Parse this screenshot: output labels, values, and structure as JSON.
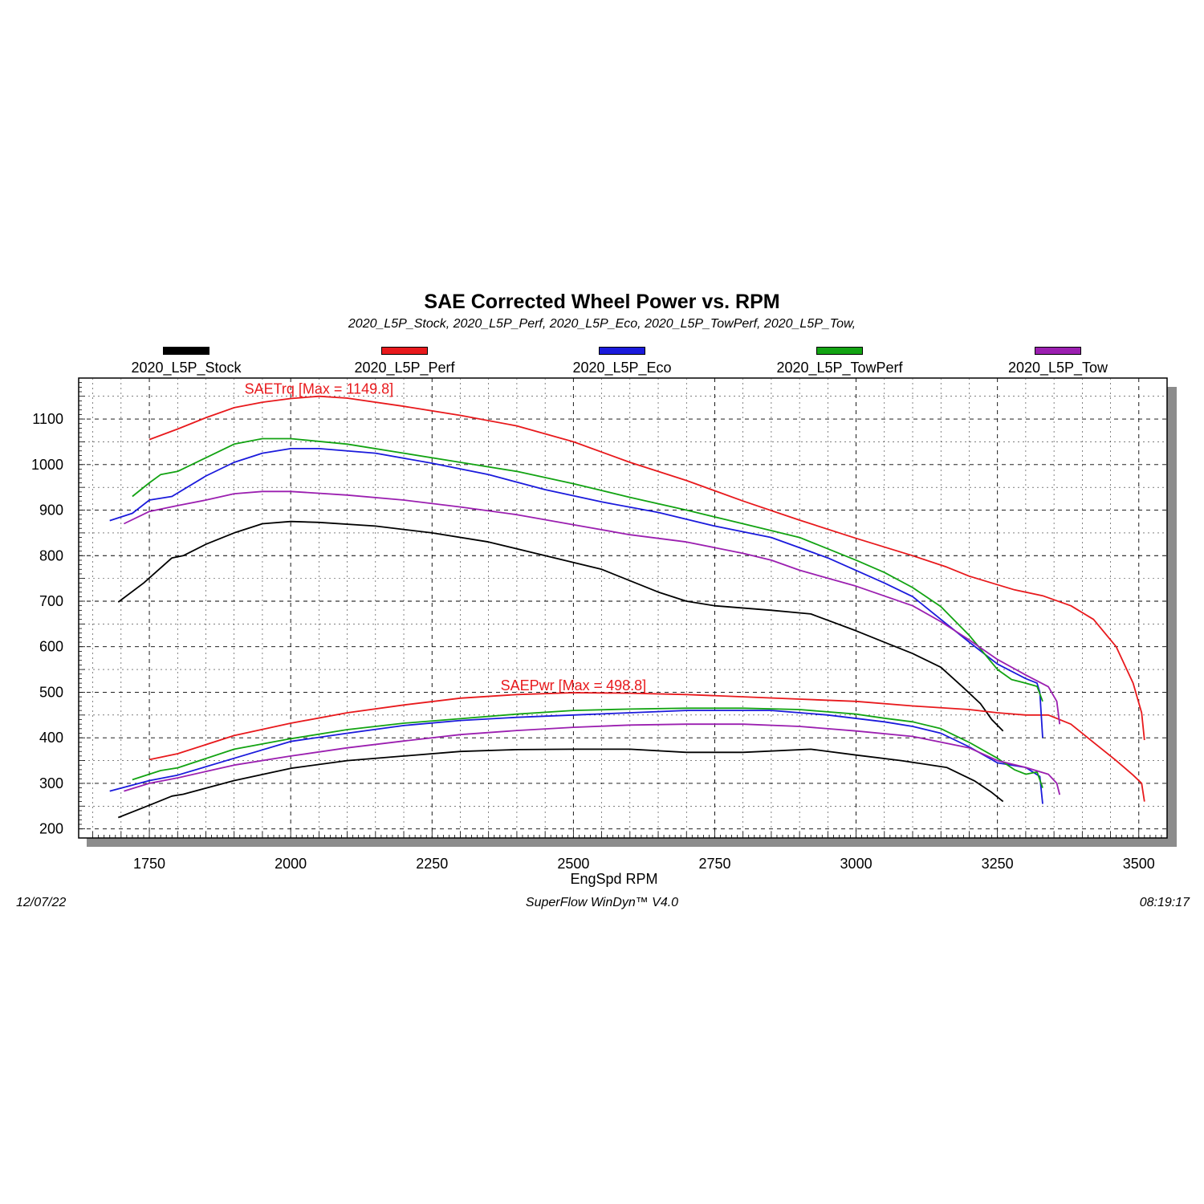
{
  "chart_data": {
    "type": "line",
    "title": "SAE Corrected Wheel Power vs. RPM",
    "subtitle": "2020_L5P_Stock, 2020_L5P_Perf, 2020_L5P_Eco, 2020_L5P_TowPerf, 2020_L5P_Tow,",
    "xlabel": "EngSpd RPM",
    "ylabel": "",
    "xlim": [
      1625,
      3550
    ],
    "ylim": [
      180,
      1190
    ],
    "xticks": [
      1750,
      2000,
      2250,
      2500,
      2750,
      3000,
      3250,
      3500
    ],
    "yticks": [
      200,
      300,
      400,
      500,
      600,
      700,
      800,
      900,
      1000,
      1100
    ],
    "grid": true,
    "legend_position": "top",
    "annotations": [
      {
        "name": "torque-max-annotation",
        "text": "SAETrq [Max = 1149.8]",
        "x": 2050,
        "y": 1150,
        "color": "#e8191c"
      },
      {
        "name": "power-max-annotation",
        "text": "SAEPwr [Max = 498.8]",
        "x": 2500,
        "y": 499,
        "color": "#e8191c"
      }
    ],
    "series": [
      {
        "name": "2020_L5P_Stock",
        "color": "#000000",
        "torque": [
          [
            1695,
            698
          ],
          [
            1740,
            740
          ],
          [
            1790,
            795
          ],
          [
            1810,
            800
          ],
          [
            1850,
            825
          ],
          [
            1900,
            850
          ],
          [
            1950,
            870
          ],
          [
            2000,
            875
          ],
          [
            2050,
            873
          ],
          [
            2150,
            865
          ],
          [
            2250,
            850
          ],
          [
            2350,
            830
          ],
          [
            2450,
            800
          ],
          [
            2550,
            770
          ],
          [
            2650,
            720
          ],
          [
            2700,
            700
          ],
          [
            2750,
            690
          ],
          [
            2850,
            680
          ],
          [
            2920,
            672
          ],
          [
            3000,
            635
          ],
          [
            3060,
            605
          ],
          [
            3100,
            585
          ],
          [
            3150,
            555
          ],
          [
            3190,
            510
          ],
          [
            3220,
            475
          ],
          [
            3240,
            440
          ],
          [
            3260,
            415
          ]
        ],
        "power": [
          [
            1695,
            225
          ],
          [
            1750,
            252
          ],
          [
            1790,
            272
          ],
          [
            1810,
            276
          ],
          [
            1900,
            306
          ],
          [
            2000,
            333
          ],
          [
            2100,
            350
          ],
          [
            2200,
            360
          ],
          [
            2300,
            370
          ],
          [
            2400,
            374
          ],
          [
            2500,
            375
          ],
          [
            2600,
            375
          ],
          [
            2700,
            368
          ],
          [
            2800,
            368
          ],
          [
            2920,
            375
          ],
          [
            3000,
            362
          ],
          [
            3080,
            350
          ],
          [
            3160,
            335
          ],
          [
            3210,
            305
          ],
          [
            3240,
            280
          ],
          [
            3260,
            260
          ]
        ]
      },
      {
        "name": "2020_L5P_Perf",
        "color": "#e8191c",
        "torque": [
          [
            1750,
            1055
          ],
          [
            1800,
            1078
          ],
          [
            1850,
            1103
          ],
          [
            1900,
            1125
          ],
          [
            1950,
            1137
          ],
          [
            2000,
            1145
          ],
          [
            2050,
            1150
          ],
          [
            2100,
            1146
          ],
          [
            2200,
            1128
          ],
          [
            2300,
            1108
          ],
          [
            2400,
            1085
          ],
          [
            2500,
            1050
          ],
          [
            2600,
            1005
          ],
          [
            2700,
            965
          ],
          [
            2800,
            920
          ],
          [
            2900,
            878
          ],
          [
            3000,
            838
          ],
          [
            3100,
            800
          ],
          [
            3160,
            775
          ],
          [
            3200,
            755
          ],
          [
            3240,
            740
          ],
          [
            3280,
            725
          ],
          [
            3330,
            712
          ],
          [
            3380,
            690
          ],
          [
            3420,
            660
          ],
          [
            3460,
            600
          ],
          [
            3490,
            520
          ],
          [
            3505,
            455
          ],
          [
            3510,
            395
          ]
        ],
        "power": [
          [
            1750,
            352
          ],
          [
            1800,
            365
          ],
          [
            1900,
            405
          ],
          [
            2000,
            432
          ],
          [
            2100,
            455
          ],
          [
            2200,
            472
          ],
          [
            2300,
            487
          ],
          [
            2400,
            495
          ],
          [
            2500,
            499
          ],
          [
            2600,
            498
          ],
          [
            2700,
            495
          ],
          [
            2800,
            490
          ],
          [
            2900,
            485
          ],
          [
            3000,
            480
          ],
          [
            3100,
            470
          ],
          [
            3200,
            462
          ],
          [
            3250,
            455
          ],
          [
            3300,
            450
          ],
          [
            3340,
            450
          ],
          [
            3380,
            430
          ],
          [
            3420,
            390
          ],
          [
            3460,
            350
          ],
          [
            3490,
            318
          ],
          [
            3505,
            300
          ],
          [
            3510,
            260
          ]
        ]
      },
      {
        "name": "2020_L5P_Eco",
        "color": "#1a1adc",
        "torque": [
          [
            1680,
            877
          ],
          [
            1720,
            893
          ],
          [
            1750,
            922
          ],
          [
            1790,
            930
          ],
          [
            1850,
            975
          ],
          [
            1900,
            1005
          ],
          [
            1950,
            1025
          ],
          [
            2000,
            1035
          ],
          [
            2050,
            1035
          ],
          [
            2150,
            1025
          ],
          [
            2250,
            1003
          ],
          [
            2350,
            978
          ],
          [
            2450,
            945
          ],
          [
            2550,
            918
          ],
          [
            2650,
            895
          ],
          [
            2750,
            865
          ],
          [
            2850,
            840
          ],
          [
            2950,
            795
          ],
          [
            3050,
            740
          ],
          [
            3100,
            710
          ],
          [
            3150,
            660
          ],
          [
            3200,
            610
          ],
          [
            3250,
            562
          ],
          [
            3300,
            530
          ],
          [
            3320,
            520
          ],
          [
            3325,
            500
          ],
          [
            3330,
            400
          ]
        ],
        "power": [
          [
            1680,
            283
          ],
          [
            1750,
            306
          ],
          [
            1800,
            318
          ],
          [
            1900,
            355
          ],
          [
            2000,
            392
          ],
          [
            2100,
            410
          ],
          [
            2200,
            427
          ],
          [
            2300,
            438
          ],
          [
            2400,
            445
          ],
          [
            2500,
            450
          ],
          [
            2600,
            455
          ],
          [
            2700,
            460
          ],
          [
            2800,
            460
          ],
          [
            2850,
            460
          ],
          [
            2950,
            450
          ],
          [
            3050,
            435
          ],
          [
            3100,
            425
          ],
          [
            3150,
            410
          ],
          [
            3200,
            380
          ],
          [
            3250,
            345
          ],
          [
            3300,
            335
          ],
          [
            3325,
            315
          ],
          [
            3330,
            255
          ]
        ]
      },
      {
        "name": "2020_L5P_TowPerf",
        "color": "#12a312",
        "torque": [
          [
            1720,
            930
          ],
          [
            1750,
            960
          ],
          [
            1770,
            978
          ],
          [
            1800,
            985
          ],
          [
            1850,
            1015
          ],
          [
            1900,
            1045
          ],
          [
            1950,
            1057
          ],
          [
            2000,
            1057
          ],
          [
            2100,
            1045
          ],
          [
            2200,
            1025
          ],
          [
            2300,
            1005
          ],
          [
            2400,
            985
          ],
          [
            2500,
            958
          ],
          [
            2600,
            928
          ],
          [
            2700,
            900
          ],
          [
            2800,
            870
          ],
          [
            2900,
            840
          ],
          [
            3000,
            790
          ],
          [
            3050,
            763
          ],
          [
            3100,
            730
          ],
          [
            3150,
            688
          ],
          [
            3200,
            625
          ],
          [
            3230,
            580
          ],
          [
            3250,
            550
          ],
          [
            3275,
            528
          ],
          [
            3300,
            520
          ],
          [
            3320,
            513
          ],
          [
            3330,
            480
          ]
        ],
        "power": [
          [
            1720,
            308
          ],
          [
            1770,
            328
          ],
          [
            1800,
            334
          ],
          [
            1900,
            375
          ],
          [
            2000,
            398
          ],
          [
            2100,
            418
          ],
          [
            2200,
            432
          ],
          [
            2300,
            442
          ],
          [
            2400,
            452
          ],
          [
            2500,
            460
          ],
          [
            2600,
            463
          ],
          [
            2700,
            465
          ],
          [
            2800,
            465
          ],
          [
            2900,
            462
          ],
          [
            3000,
            452
          ],
          [
            3050,
            443
          ],
          [
            3100,
            435
          ],
          [
            3150,
            420
          ],
          [
            3200,
            390
          ],
          [
            3250,
            355
          ],
          [
            3280,
            330
          ],
          [
            3300,
            320
          ],
          [
            3320,
            325
          ],
          [
            3330,
            290
          ]
        ]
      },
      {
        "name": "2020_L5P_Tow",
        "color": "#9b1fb0",
        "torque": [
          [
            1705,
            870
          ],
          [
            1750,
            897
          ],
          [
            1800,
            910
          ],
          [
            1850,
            922
          ],
          [
            1900,
            936
          ],
          [
            1950,
            941
          ],
          [
            2000,
            941
          ],
          [
            2100,
            933
          ],
          [
            2200,
            922
          ],
          [
            2300,
            907
          ],
          [
            2400,
            890
          ],
          [
            2500,
            868
          ],
          [
            2600,
            846
          ],
          [
            2700,
            830
          ],
          [
            2800,
            805
          ],
          [
            2850,
            790
          ],
          [
            2900,
            768
          ],
          [
            3000,
            733
          ],
          [
            3100,
            690
          ],
          [
            3150,
            655
          ],
          [
            3200,
            615
          ],
          [
            3250,
            572
          ],
          [
            3300,
            538
          ],
          [
            3340,
            512
          ],
          [
            3355,
            480
          ],
          [
            3360,
            430
          ]
        ],
        "power": [
          [
            1705,
            283
          ],
          [
            1750,
            300
          ],
          [
            1800,
            312
          ],
          [
            1900,
            340
          ],
          [
            2000,
            360
          ],
          [
            2100,
            378
          ],
          [
            2200,
            393
          ],
          [
            2300,
            407
          ],
          [
            2400,
            416
          ],
          [
            2500,
            423
          ],
          [
            2600,
            428
          ],
          [
            2700,
            430
          ],
          [
            2800,
            430
          ],
          [
            2900,
            425
          ],
          [
            3000,
            415
          ],
          [
            3100,
            403
          ],
          [
            3200,
            378
          ],
          [
            3250,
            350
          ],
          [
            3300,
            335
          ],
          [
            3340,
            320
          ],
          [
            3355,
            300
          ],
          [
            3360,
            275
          ]
        ]
      }
    ]
  },
  "footer": {
    "date": "12/07/22",
    "software": "SuperFlow WinDyn™  V4.0",
    "time": "08:19:17"
  }
}
